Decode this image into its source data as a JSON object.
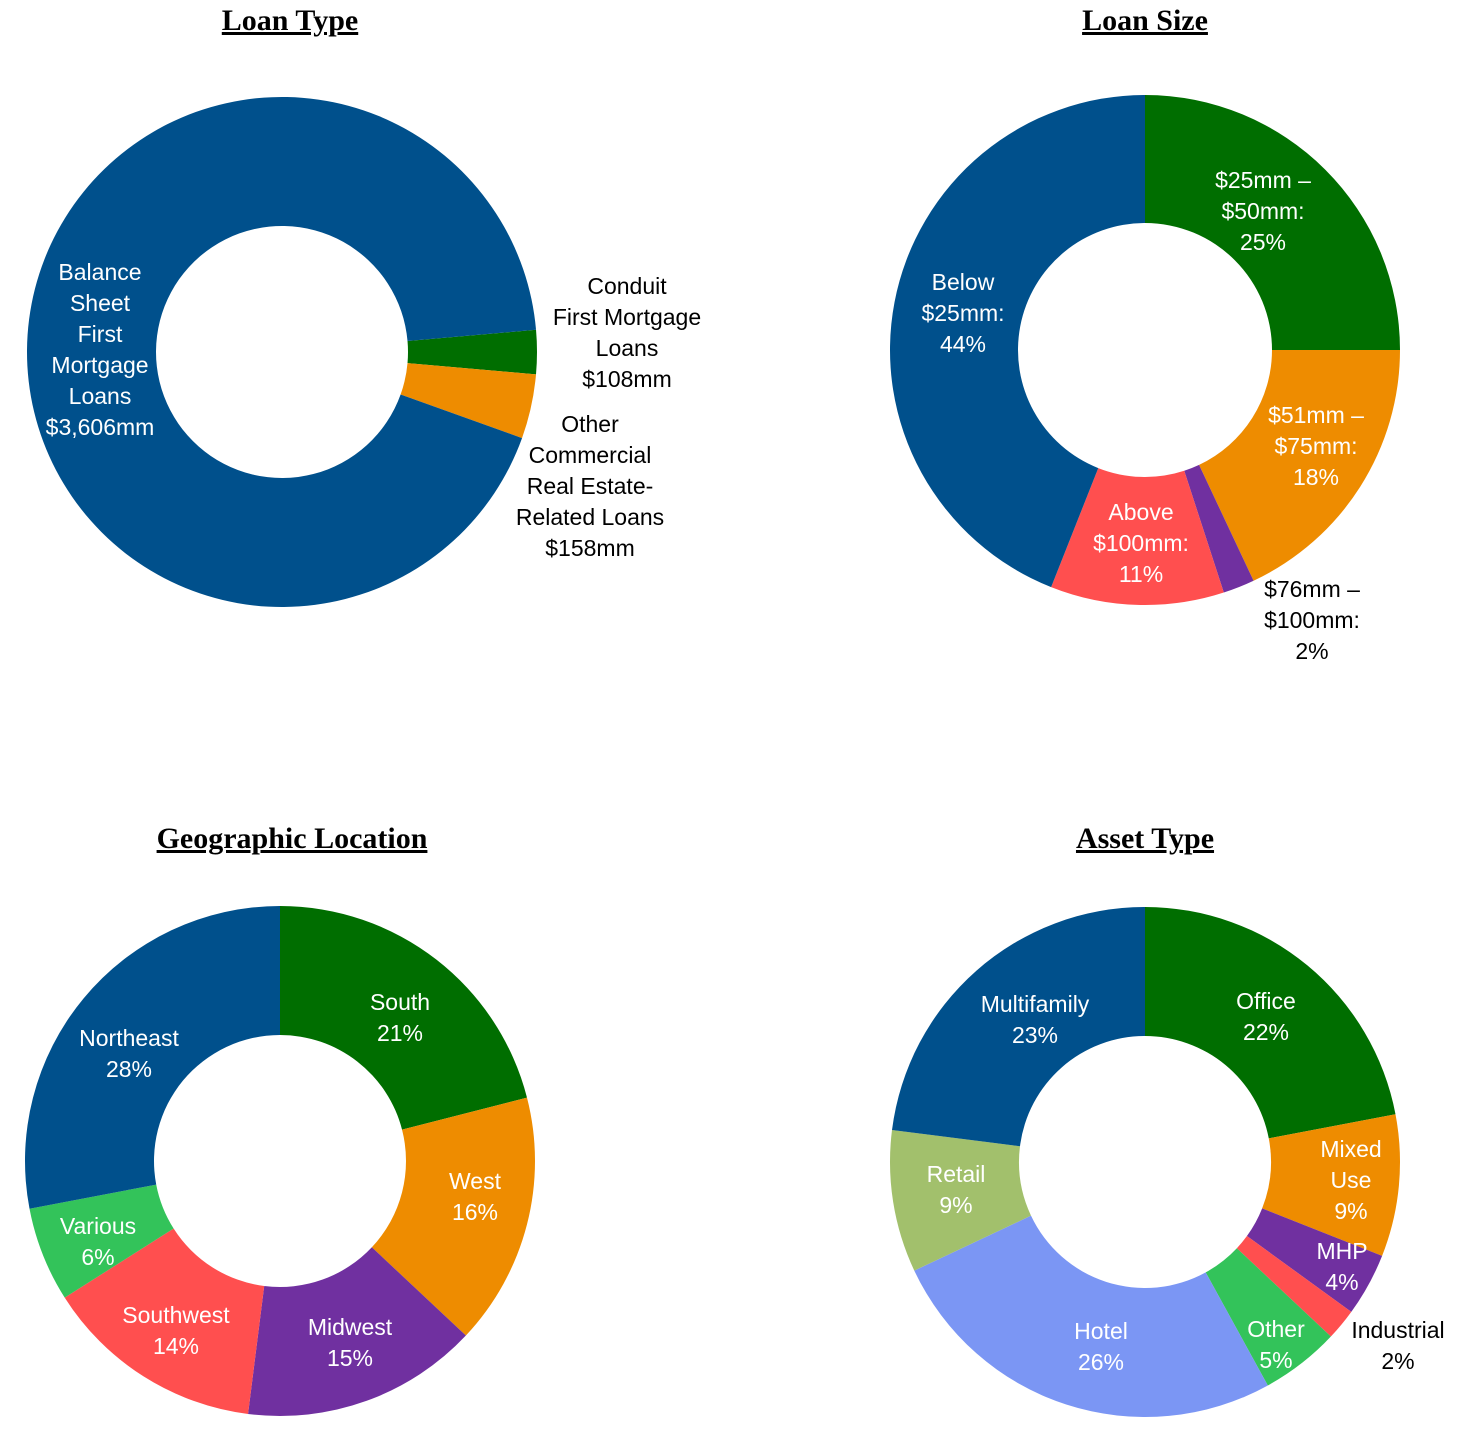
{
  "colors": {
    "blue": "#00508C",
    "green": "#006E00",
    "orange": "#EE8C00",
    "red": "#FF4F4F",
    "purple": "#7030A0",
    "lightgreen": "#33C35A",
    "lightblue": "#7B96F4",
    "olive": "#A2C06C"
  },
  "chart_data": [
    {
      "type": "pie",
      "donut": true,
      "title": "Loan Type",
      "categories": [
        "Conduit First Mortgage Loans",
        "Other Commercial Real Estate-Related Loans",
        "Balance Sheet First Mortgage Loans"
      ],
      "values": [
        108,
        158,
        3606
      ],
      "unit": "$mm",
      "colors": [
        "#006E00",
        "#EE8C00",
        "#00508C"
      ],
      "labels": [
        "Conduit\nFirst Mortgage\nLoans\n$108mm",
        "Other\nCommercial\nReal Estate-\nRelated Loans\n$158mm",
        "Balance\nSheet\nFirst\nMortgage\nLoans\n$3,606mm"
      ]
    },
    {
      "type": "pie",
      "donut": true,
      "title": "Loan Size",
      "categories": [
        "$25mm – $50mm",
        "$51mm – $75mm",
        "$76mm – $100mm",
        "Above $100mm",
        "Below $25mm"
      ],
      "values": [
        25,
        18,
        2,
        11,
        44
      ],
      "unit": "%",
      "colors": [
        "#006E00",
        "#EE8C00",
        "#7030A0",
        "#FF4F4F",
        "#00508C"
      ],
      "labels": [
        "$25mm –\n$50mm:\n25%",
        "$51mm –\n$75mm:\n18%",
        "$76mm –\n$100mm:\n2%",
        "Above\n$100mm:\n11%",
        "Below\n$25mm:\n44%"
      ]
    },
    {
      "type": "pie",
      "donut": true,
      "title": "Geographic Location",
      "categories": [
        "South",
        "West",
        "Midwest",
        "Southwest",
        "Various",
        "Northeast"
      ],
      "values": [
        21,
        16,
        15,
        14,
        6,
        28
      ],
      "unit": "%",
      "colors": [
        "#006E00",
        "#EE8C00",
        "#7030A0",
        "#FF4F4F",
        "#33C35A",
        "#00508C"
      ],
      "labels": [
        "South\n21%",
        "West\n16%",
        "Midwest\n15%",
        "Southwest\n14%",
        "Various\n6%",
        "Northeast\n28%"
      ]
    },
    {
      "type": "pie",
      "donut": true,
      "title": "Asset Type",
      "categories": [
        "Office",
        "Mixed Use",
        "MHP",
        "Industrial",
        "Other",
        "Hotel",
        "Retail",
        "Multifamily"
      ],
      "values": [
        22,
        9,
        4,
        2,
        5,
        26,
        9,
        23
      ],
      "unit": "%",
      "colors": [
        "#006E00",
        "#EE8C00",
        "#7030A0",
        "#FF4F4F",
        "#33C35A",
        "#7B96F4",
        "#A2C06C",
        "#00508C"
      ],
      "labels": [
        "Office\n22%",
        "Mixed\nUse\n9%",
        "MHP\n4%",
        "Industrial\n2%",
        "Other\n5%",
        "Hotel\n26%",
        "Retail\n9%",
        "Multifamily\n23%"
      ]
    }
  ]
}
